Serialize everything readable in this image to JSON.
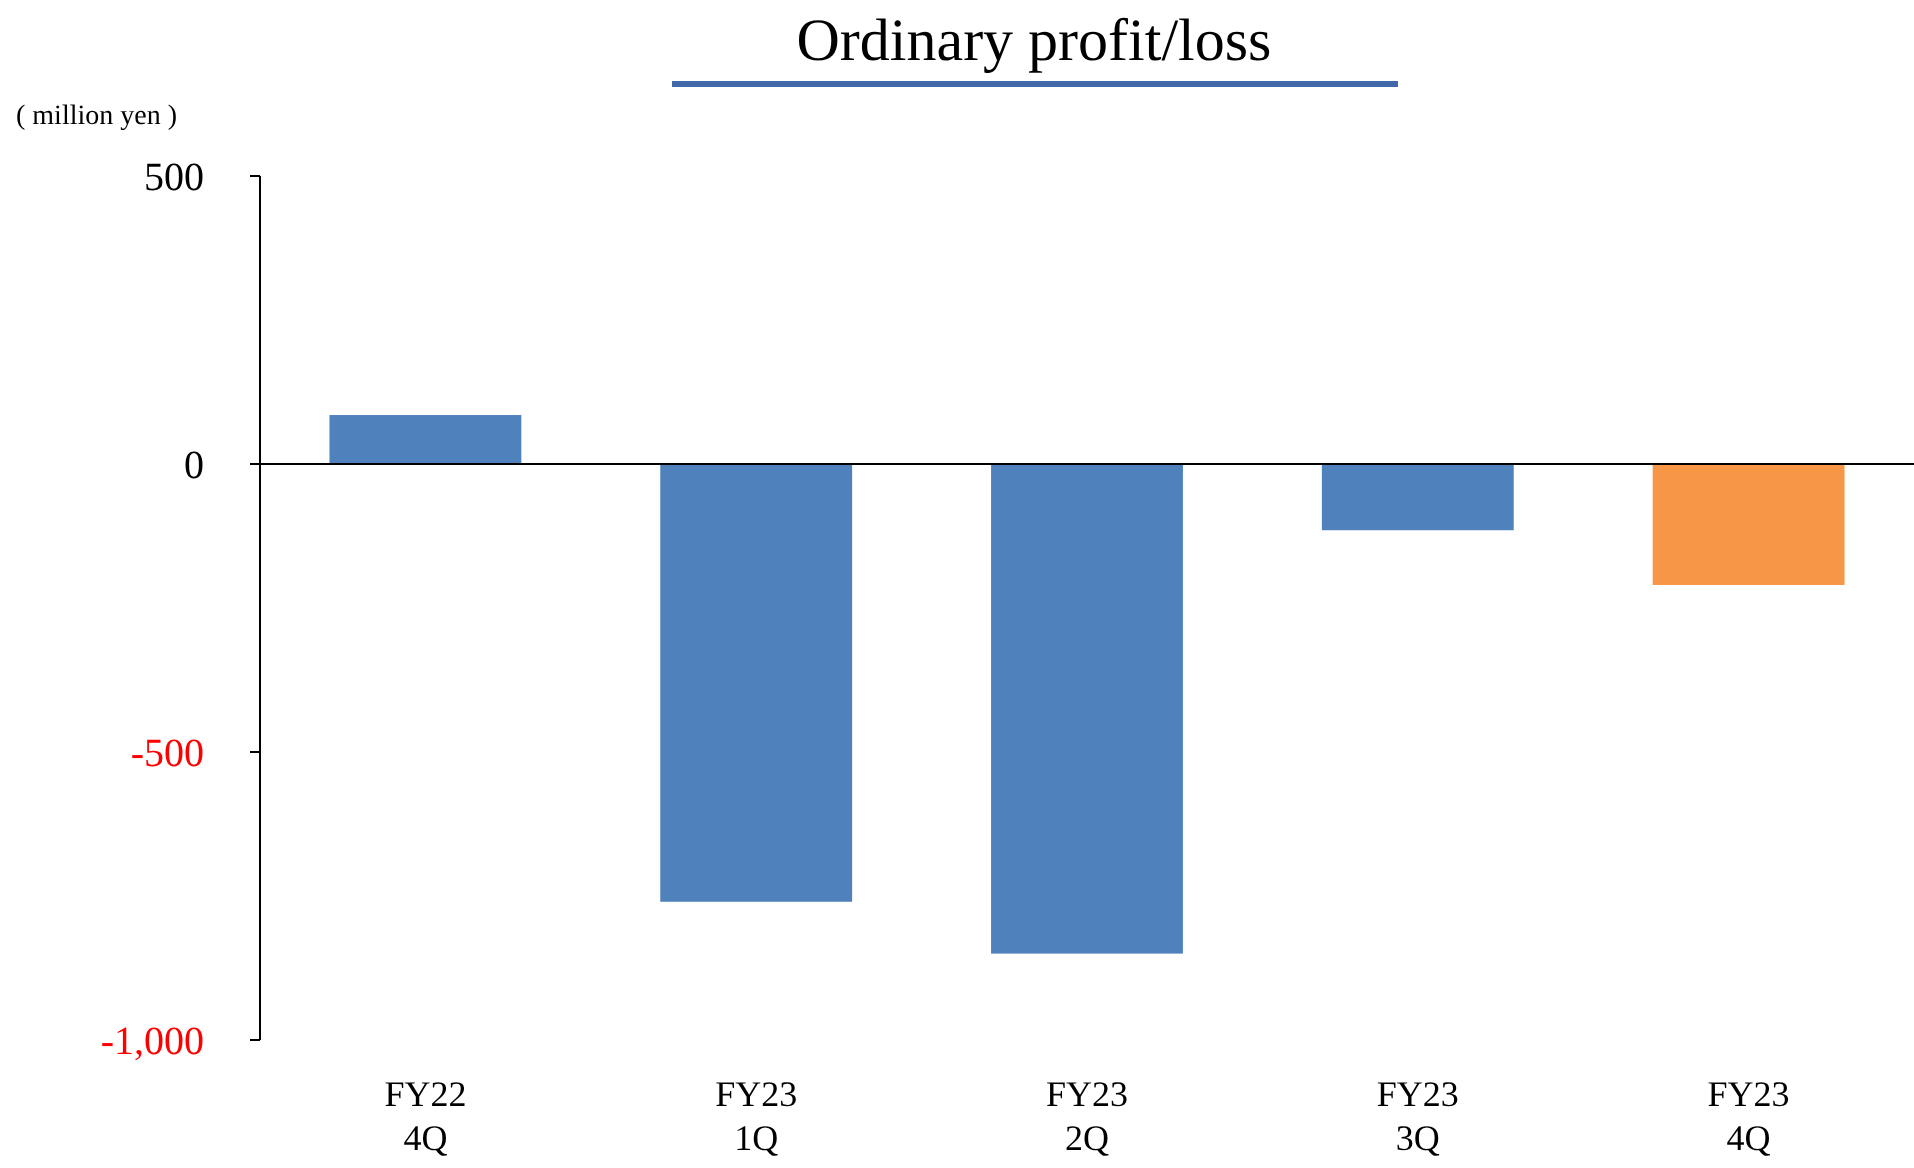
{
  "chart_data": {
    "type": "bar",
    "title": "Ordinary profit/loss",
    "ylabel": "( million yen )",
    "categories": [
      "FY22\n4Q",
      "FY23\n1Q",
      "FY23\n2Q",
      "FY23\n3Q",
      "FY23\n4Q"
    ],
    "values": [
      85,
      -760,
      -850,
      -115,
      -210
    ],
    "colors": [
      "#4f81bd",
      "#4f81bd",
      "#4f81bd",
      "#4f81bd",
      "#f79646"
    ],
    "ylim": [
      -1000,
      500
    ],
    "yticks": [
      500,
      0,
      {
        "value": -500,
        "label": "-500"
      },
      {
        "value": -1000,
        "label": "-1,000"
      }
    ]
  }
}
